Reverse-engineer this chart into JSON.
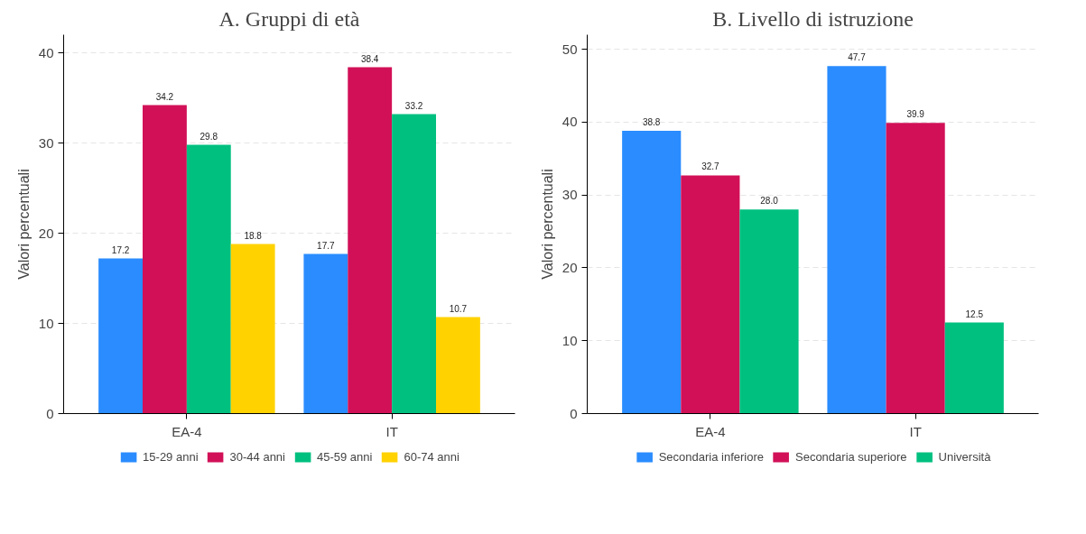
{
  "chart_data": [
    {
      "type": "bar",
      "title": "A. Gruppi di età",
      "ylabel": "Valori percentuali",
      "categories": [
        "EA-4",
        "IT"
      ],
      "ylim": [
        0,
        42
      ],
      "yticks": [
        0,
        10,
        20,
        30,
        40
      ],
      "grid": "y",
      "legend": "bottom",
      "data_labels": true,
      "series": [
        {
          "name": "15-29 anni",
          "color": "#2a8cff",
          "values": [
            17.2,
            17.7
          ]
        },
        {
          "name": "30-44 anni",
          "color": "#d21057",
          "values": [
            34.2,
            38.4
          ]
        },
        {
          "name": "45-59 anni",
          "color": "#00c07f",
          "values": [
            29.8,
            33.2
          ]
        },
        {
          "name": "60-74 anni",
          "color": "#ffd200",
          "values": [
            18.8,
            10.7
          ]
        }
      ]
    },
    {
      "type": "bar",
      "title": "B. Livello di istruzione",
      "ylabel": "Valori percentuali",
      "categories": [
        "EA-4",
        "IT"
      ],
      "ylim": [
        0,
        52
      ],
      "yticks": [
        0,
        10,
        20,
        30,
        40,
        50
      ],
      "grid": "y",
      "legend": "bottom",
      "data_labels": true,
      "series": [
        {
          "name": "Secondaria inferiore",
          "color": "#2a8cff",
          "values": [
            38.8,
            47.7
          ]
        },
        {
          "name": "Secondaria superiore",
          "color": "#d21057",
          "values": [
            32.7,
            39.9
          ]
        },
        {
          "name": "Università",
          "color": "#00c07f",
          "values": [
            28.0,
            12.5
          ],
          "value_labels": [
            "28.0",
            "12.5"
          ]
        }
      ]
    }
  ]
}
